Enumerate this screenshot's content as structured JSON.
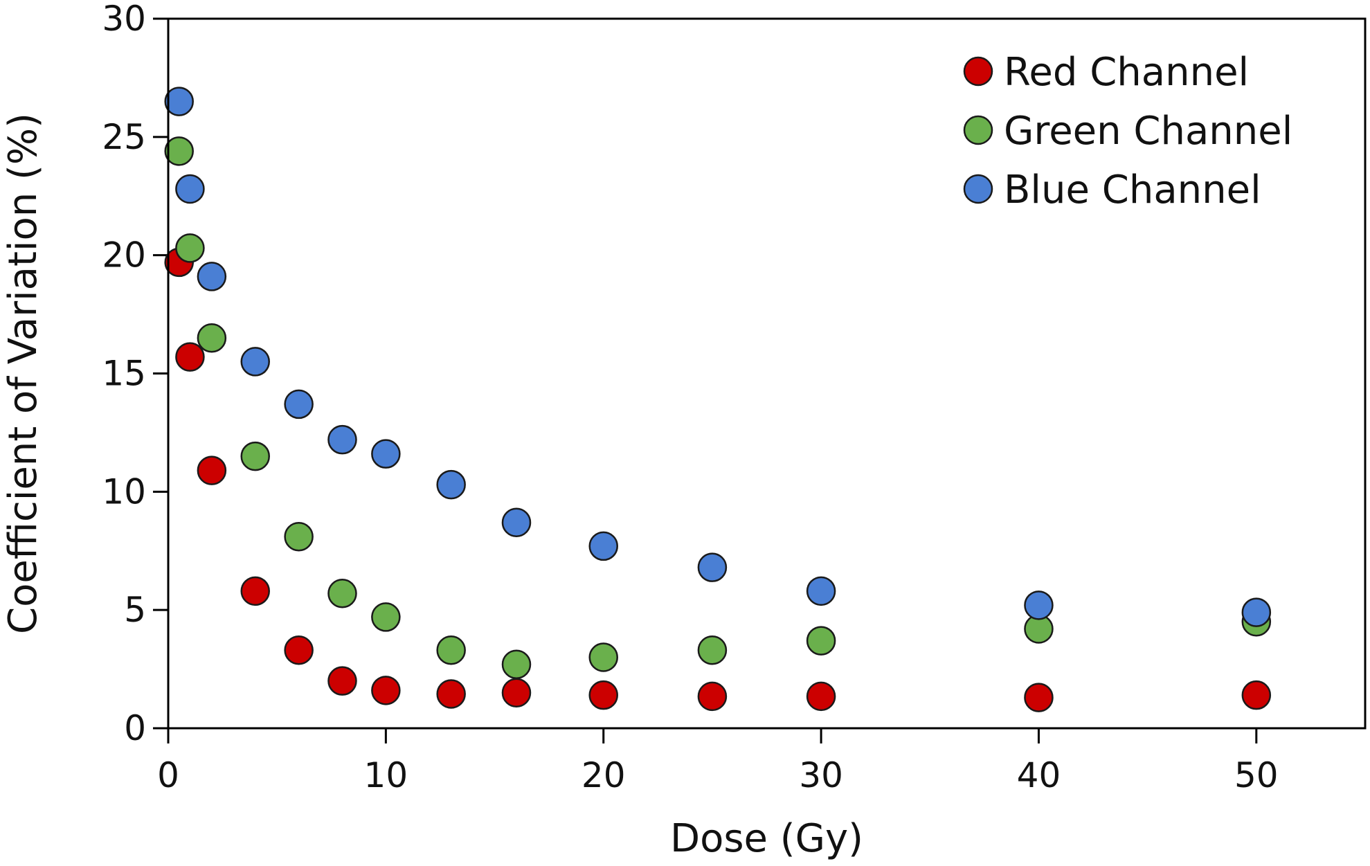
{
  "chart_data": {
    "type": "scatter",
    "title": "",
    "xlabel": "Dose (Gy)",
    "ylabel": "Coefficient of Variation (%)",
    "xlim": [
      0,
      55
    ],
    "ylim": [
      0,
      30
    ],
    "xticks": [
      "0",
      "10",
      "20",
      "30",
      "40",
      "50"
    ],
    "yticks": [
      "0",
      "5",
      "10",
      "15",
      "20",
      "25",
      "30"
    ],
    "grid": false,
    "legend_position": "top-right",
    "x": [
      0.5,
      1,
      2,
      4,
      6,
      8,
      10,
      13,
      16,
      20,
      25,
      30,
      40,
      50
    ],
    "series": [
      {
        "name": "Red Channel",
        "color": "#cc0000",
        "values": [
          19.7,
          15.7,
          10.9,
          5.8,
          3.3,
          2.0,
          1.6,
          1.45,
          1.5,
          1.4,
          1.35,
          1.35,
          1.3,
          1.4
        ]
      },
      {
        "name": "Green Channel",
        "color": "#6ab04c",
        "values": [
          24.4,
          20.3,
          16.5,
          11.5,
          8.1,
          5.7,
          4.7,
          3.3,
          2.7,
          3.0,
          3.3,
          3.7,
          4.2,
          4.5
        ]
      },
      {
        "name": "Blue Channel",
        "color": "#4a7fd4",
        "values": [
          26.5,
          22.8,
          19.1,
          15.5,
          13.7,
          12.2,
          11.6,
          10.3,
          8.7,
          7.7,
          6.8,
          5.8,
          5.2,
          4.9
        ]
      }
    ]
  }
}
